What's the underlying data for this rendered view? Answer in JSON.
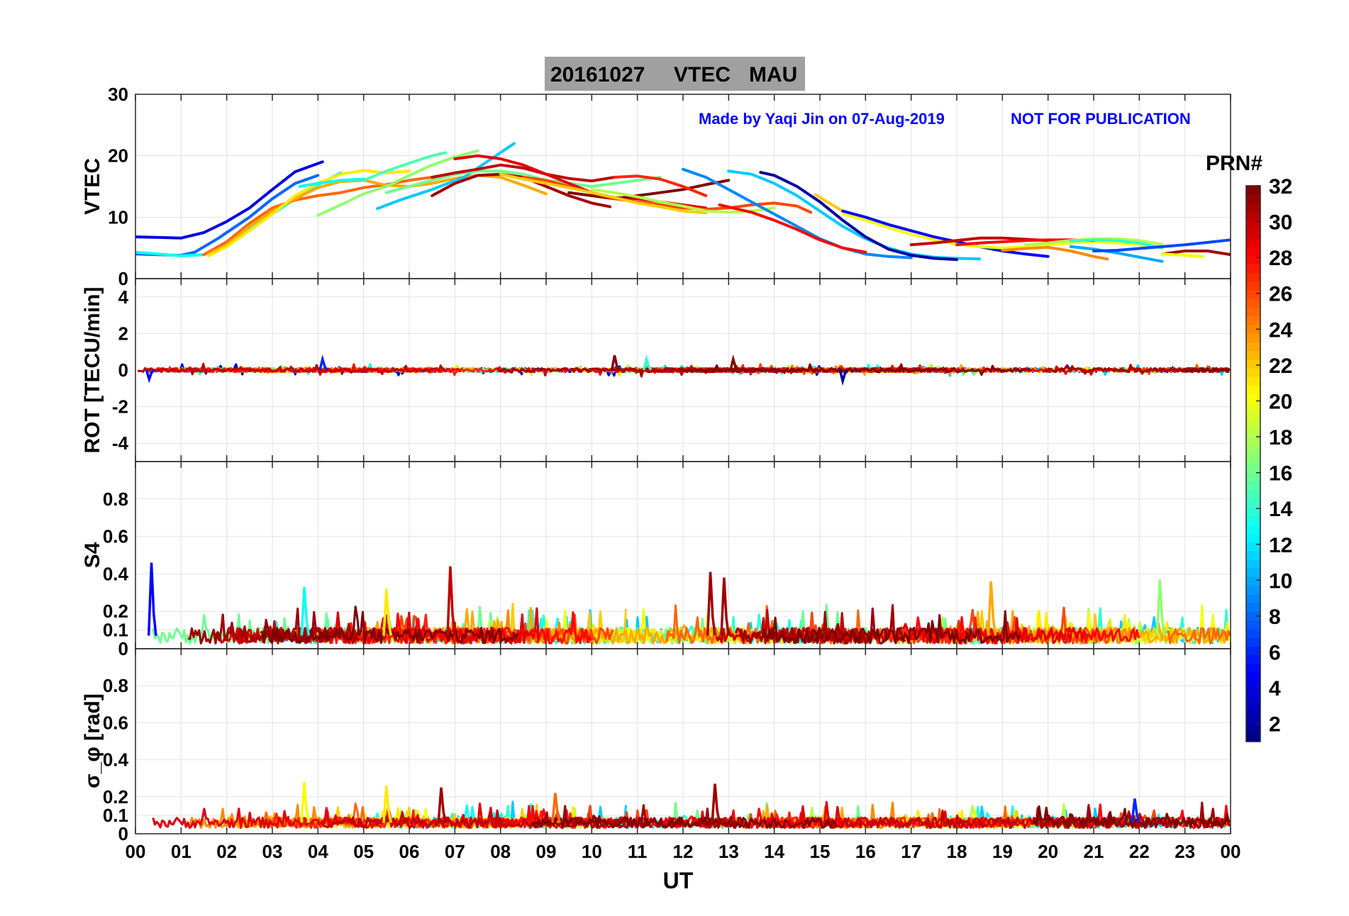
{
  "title": {
    "date": "20161027",
    "quantity": "VTEC",
    "station": "MAU",
    "background_color": "#a0a0a0"
  },
  "credits": {
    "made_by": "Made by Yaqi Jin on 07-Aug-2019",
    "notice": "NOT FOR PUBLICATION",
    "color": "#0000ff"
  },
  "colorbar": {
    "label": "PRN#",
    "range": [
      1,
      32
    ],
    "ticks": [
      "2",
      "4",
      "6",
      "8",
      "10",
      "12",
      "14",
      "16",
      "18",
      "20",
      "22",
      "24",
      "26",
      "28",
      "30",
      "32"
    ],
    "colormap": "jet"
  },
  "x_axis": {
    "label": "UT",
    "ticks": [
      "00",
      "01",
      "02",
      "03",
      "04",
      "05",
      "06",
      "07",
      "08",
      "09",
      "10",
      "11",
      "12",
      "13",
      "14",
      "15",
      "16",
      "17",
      "18",
      "19",
      "20",
      "21",
      "22",
      "23",
      "00"
    ],
    "range_hours": [
      0,
      24
    ]
  },
  "chart_data": [
    {
      "type": "line",
      "panel": "vtec",
      "ylabel": "VTEC",
      "ylim": [
        0,
        30
      ],
      "yticks": [
        "0",
        "10",
        "20",
        "30"
      ],
      "grid": true,
      "series": [
        {
          "prn": 4,
          "x": [
            0.0,
            0.5,
            1.0,
            1.5,
            2.0,
            2.5,
            3.0,
            3.5,
            4.1
          ],
          "y": [
            6.8,
            6.7,
            6.6,
            7.5,
            9.3,
            11.5,
            14.5,
            17.4,
            19.0
          ]
        },
        {
          "prn": 8,
          "x": [
            0.0,
            0.5,
            1.0,
            1.3,
            1.8,
            2.5,
            3.0,
            3.5,
            4.0
          ],
          "y": [
            4.0,
            3.9,
            3.8,
            4.3,
            6.5,
            10.0,
            13.0,
            15.5,
            16.8
          ]
        },
        {
          "prn": 13,
          "x": [
            0.0,
            0.5,
            1.0,
            1.5,
            2.0,
            2.6,
            3.2,
            3.8,
            4.5
          ],
          "y": [
            4.3,
            4.0,
            3.7,
            3.9,
            5.8,
            8.5,
            11.5,
            14.5,
            17.2
          ]
        },
        {
          "prn": 25,
          "x": [
            1.5,
            2.0,
            2.5,
            3.0,
            3.5,
            4.0,
            4.5,
            5.0,
            5.5,
            6.0,
            6.5
          ],
          "y": [
            3.9,
            6.0,
            9.0,
            11.5,
            12.8,
            13.5,
            14.0,
            14.8,
            15.3,
            16.0,
            16.5
          ]
        },
        {
          "prn": 23,
          "x": [
            1.6,
            2.0,
            2.5,
            3.0,
            3.5,
            4.0,
            4.5,
            5.0,
            5.5,
            6.0,
            6.5,
            7.0,
            7.5,
            8.0,
            8.5,
            9.0
          ],
          "y": [
            4.0,
            5.5,
            8.5,
            11.0,
            13.0,
            14.8,
            15.8,
            16.0,
            15.2,
            15.0,
            15.5,
            16.3,
            16.8,
            16.5,
            15.2,
            13.8
          ]
        },
        {
          "prn": 21,
          "x": [
            1.6,
            2.0,
            2.5,
            3.0,
            3.5,
            4.0,
            4.5,
            5.0,
            5.5,
            6.0
          ],
          "y": [
            3.7,
            5.2,
            7.8,
            10.5,
            13.5,
            15.5,
            17.0,
            17.6,
            17.2,
            17.5
          ]
        },
        {
          "prn": 17,
          "x": [
            4.0,
            4.5,
            5.0,
            5.5,
            6.0,
            6.5,
            7.0,
            7.5
          ],
          "y": [
            10.3,
            12.0,
            13.8,
            15.0,
            16.8,
            18.5,
            19.8,
            20.8
          ]
        },
        {
          "prn": 15,
          "x": [
            5.0,
            5.5,
            6.0,
            6.5,
            6.8
          ],
          "y": [
            16.0,
            17.5,
            18.8,
            20.0,
            20.5
          ]
        },
        {
          "prn": 13,
          "x": [
            3.6,
            4.0,
            4.5,
            5.0
          ],
          "y": [
            15.0,
            15.5,
            16.0,
            16.2
          ]
        },
        {
          "prn": 11,
          "x": [
            5.3,
            5.8,
            6.5,
            7.2,
            7.8,
            8.3
          ],
          "y": [
            11.4,
            12.8,
            14.5,
            16.5,
            19.5,
            22.0
          ]
        },
        {
          "prn": 16,
          "x": [
            5.5,
            6.0,
            6.5,
            7.0,
            7.5,
            8.0,
            8.5,
            9.0,
            9.5,
            10.0,
            10.5,
            11.0,
            11.5
          ],
          "y": [
            14.0,
            15.0,
            16.0,
            17.0,
            17.5,
            17.5,
            17.0,
            16.0,
            15.5,
            15.0,
            15.5,
            16.0,
            16.5
          ]
        },
        {
          "prn": 31,
          "x": [
            6.5,
            7.0,
            7.5,
            8.0,
            8.5,
            9.0,
            9.5,
            10.0,
            10.4
          ],
          "y": [
            13.5,
            15.5,
            16.8,
            17.0,
            16.5,
            15.0,
            13.5,
            12.3,
            11.7
          ]
        },
        {
          "prn": 30,
          "x": [
            6.5,
            7.0,
            7.5,
            8.0,
            8.5,
            9.0,
            9.5,
            10.0,
            10.5
          ],
          "y": [
            16.5,
            17.2,
            17.8,
            18.5,
            18.0,
            17.0,
            16.3,
            15.9,
            16.5
          ]
        },
        {
          "prn": 29,
          "x": [
            7.0,
            7.5,
            8.0,
            8.5,
            9.0,
            9.5,
            10.0,
            10.5,
            11.0,
            11.5,
            12.0,
            12.5
          ],
          "y": [
            19.5,
            20.0,
            19.5,
            18.5,
            17.0,
            15.5,
            14.0,
            13.2,
            13.0,
            12.5,
            12.0,
            11.5
          ]
        },
        {
          "prn": 32,
          "x": [
            9.5,
            10.0,
            10.5,
            11.0,
            11.5,
            12.0,
            12.5,
            13.0
          ],
          "y": [
            14.0,
            13.5,
            13.0,
            13.5,
            14.0,
            14.5,
            15.3,
            16.0
          ]
        },
        {
          "prn": 27,
          "x": [
            10.5,
            11.0,
            11.5,
            12.0,
            12.5
          ],
          "y": [
            16.5,
            16.7,
            16.2,
            15.0,
            13.5
          ]
        },
        {
          "prn": 26,
          "x": [
            8.5,
            9.0,
            9.5,
            10.0,
            10.5,
            11.0,
            11.5,
            12.0,
            12.5,
            13.0,
            13.5,
            14.0,
            14.5,
            14.8
          ],
          "y": [
            16.5,
            16.0,
            15.0,
            14.0,
            13.0,
            12.5,
            12.0,
            11.5,
            11.3,
            11.5,
            12.0,
            12.3,
            11.8,
            10.8
          ]
        },
        {
          "prn": 22,
          "x": [
            8.0,
            8.5,
            9.0,
            9.5,
            10.0,
            10.5,
            11.0,
            11.5,
            12.0,
            12.5
          ],
          "y": [
            17.0,
            16.2,
            15.5,
            14.8,
            14.0,
            13.2,
            12.3,
            11.7,
            11.0,
            10.7
          ]
        },
        {
          "prn": 18,
          "x": [
            10.0,
            10.5,
            11.0,
            11.5,
            12.0,
            12.5,
            13.0,
            13.5,
            14.0
          ],
          "y": [
            14.5,
            14.0,
            13.3,
            12.5,
            11.8,
            11.0,
            10.8,
            11.0,
            11.5
          ]
        },
        {
          "prn": 9,
          "x": [
            12.0,
            12.5,
            13.0,
            13.5,
            14.0,
            14.5,
            15.0,
            15.5,
            16.0,
            16.5,
            17.0
          ],
          "y": [
            17.8,
            16.5,
            14.5,
            12.5,
            10.5,
            8.5,
            6.5,
            5.0,
            4.0,
            3.6,
            3.4
          ]
        },
        {
          "prn": 11,
          "x": [
            13.0,
            13.5,
            14.0,
            14.5,
            15.0,
            15.5,
            16.0,
            16.5,
            17.0,
            17.5,
            18.0,
            18.5
          ],
          "y": [
            17.5,
            17.0,
            15.5,
            13.5,
            11.0,
            8.5,
            6.5,
            5.0,
            4.0,
            3.5,
            3.3,
            3.2
          ]
        },
        {
          "prn": 2,
          "x": [
            13.7,
            14.0,
            14.5,
            15.0,
            15.5,
            16.0,
            16.5,
            17.0,
            17.5,
            18.0
          ],
          "y": [
            17.3,
            16.8,
            15.0,
            12.5,
            9.5,
            6.8,
            4.8,
            3.8,
            3.3,
            3.1
          ]
        },
        {
          "prn": 28,
          "x": [
            12.8,
            13.5,
            14.0,
            14.5,
            15.0,
            15.5,
            16.0
          ],
          "y": [
            12.0,
            10.8,
            9.5,
            8.0,
            6.3,
            5.0,
            4.3
          ]
        },
        {
          "prn": 22,
          "x": [
            14.9,
            15.2,
            15.5
          ],
          "y": [
            13.7,
            12.3,
            11.0
          ]
        },
        {
          "prn": 5,
          "x": [
            15.5,
            16.0,
            16.5,
            17.0,
            17.5,
            18.0,
            18.5,
            19.0,
            19.5,
            20.0
          ],
          "y": [
            11.0,
            10.0,
            8.8,
            7.8,
            6.8,
            6.0,
            5.2,
            4.5,
            4.0,
            3.6
          ]
        },
        {
          "prn": 20,
          "x": [
            15.5,
            16.0,
            16.5,
            17.0,
            17.5,
            18.0,
            18.5,
            19.0,
            19.5,
            20.0,
            20.5,
            21.0,
            21.5,
            22.0,
            22.5
          ],
          "y": [
            10.5,
            9.5,
            8.3,
            7.2,
            6.3,
            5.6,
            5.2,
            5.0,
            5.2,
            5.5,
            5.8,
            6.0,
            5.8,
            5.5,
            5.0
          ]
        },
        {
          "prn": 30,
          "x": [
            17.0,
            17.5,
            18.0,
            18.5,
            19.0,
            19.5,
            20.0
          ],
          "y": [
            5.5,
            5.8,
            6.2,
            6.6,
            6.6,
            6.4,
            6.2
          ]
        },
        {
          "prn": 28,
          "x": [
            18.0,
            18.5,
            19.0,
            19.5,
            20.0,
            20.5,
            21.0
          ],
          "y": [
            5.5,
            5.8,
            6.0,
            6.2,
            6.3,
            6.3,
            6.2
          ]
        },
        {
          "prn": 24,
          "x": [
            19.0,
            19.5,
            20.0,
            20.5,
            21.0,
            21.3
          ],
          "y": [
            4.6,
            4.9,
            5.1,
            4.5,
            3.6,
            3.2
          ]
        },
        {
          "prn": 18,
          "x": [
            19.5,
            20.0,
            20.5,
            21.0,
            21.5,
            22.0,
            22.5
          ],
          "y": [
            5.5,
            5.8,
            6.2,
            6.5,
            6.5,
            6.2,
            5.6
          ]
        },
        {
          "prn": 14,
          "x": [
            20.5,
            21.0,
            21.5,
            22.0,
            22.5
          ],
          "y": [
            6.1,
            6.3,
            6.2,
            5.8,
            5.0
          ]
        },
        {
          "prn": 10,
          "x": [
            20.5,
            21.0,
            21.5,
            22.0,
            22.5
          ],
          "y": [
            5.2,
            4.8,
            4.2,
            3.5,
            2.8
          ]
        },
        {
          "prn": 7,
          "x": [
            21.0,
            21.5,
            22.0,
            22.5,
            23.0,
            23.5,
            24.0
          ],
          "y": [
            4.5,
            4.6,
            4.9,
            5.2,
            5.5,
            5.9,
            6.3
          ]
        },
        {
          "prn": 31,
          "x": [
            22.5,
            23.0,
            23.5,
            24.0
          ],
          "y": [
            4.0,
            4.5,
            4.5,
            3.9
          ]
        },
        {
          "prn": 20,
          "x": [
            22.5,
            23.0,
            23.4
          ],
          "y": [
            4.0,
            3.8,
            3.6
          ]
        }
      ]
    },
    {
      "type": "line",
      "panel": "rot",
      "ylabel": "ROT [TECU/min]",
      "ylim": [
        -5,
        5
      ],
      "yticks": [
        "-4",
        "-2",
        "0",
        "2",
        "4"
      ],
      "grid": true,
      "trace_summary": "dense per-PRN rate of TEC traces fluctuating near 0 TECU/min across 00-24 UT",
      "baseline": 0,
      "typical_amplitude": 0.15,
      "notable_peaks": [
        {
          "prn": 6,
          "x": 4.1,
          "y": 0.6
        },
        {
          "prn": 32,
          "x": 10.5,
          "y": 0.8
        },
        {
          "prn": 32,
          "x": 13.1,
          "y": 0.6
        },
        {
          "prn": 14,
          "x": 11.2,
          "y": 0.6
        },
        {
          "prn": 2,
          "x": 15.5,
          "y": -0.6
        },
        {
          "prn": 5,
          "x": 0.3,
          "y": -0.5
        }
      ]
    },
    {
      "type": "line",
      "panel": "s4",
      "ylabel": "S4",
      "ylim": [
        0,
        1
      ],
      "yticks": [
        "0",
        "0.1",
        "0.2",
        "0.4",
        "0.6",
        "0.8"
      ],
      "grid": true,
      "trace_summary": "amplitude scintillation index per PRN, baseline about 0.05-0.1",
      "baseline": 0.07,
      "typical_amplitude": 0.06,
      "notable_peaks": [
        {
          "prn": 5,
          "x": 0.35,
          "y": 0.46
        },
        {
          "prn": 30,
          "x": 6.9,
          "y": 0.44
        },
        {
          "prn": 31,
          "x": 12.6,
          "y": 0.41
        },
        {
          "prn": 31,
          "x": 12.9,
          "y": 0.38
        },
        {
          "prn": 21,
          "x": 5.5,
          "y": 0.32
        },
        {
          "prn": 23,
          "x": 18.75,
          "y": 0.36
        },
        {
          "prn": 17,
          "x": 22.45,
          "y": 0.37
        },
        {
          "prn": 13,
          "x": 3.7,
          "y": 0.33
        }
      ]
    },
    {
      "type": "line",
      "panel": "sigma_phi",
      "ylabel": "σ_φ [rad]",
      "ylim": [
        0,
        1
      ],
      "yticks": [
        "0",
        "0.1",
        "0.2",
        "0.4",
        "0.6",
        "0.8"
      ],
      "grid": true,
      "trace_summary": "phase scintillation index per PRN, baseline about 0.05-0.08",
      "baseline": 0.06,
      "typical_amplitude": 0.04,
      "notable_peaks": [
        {
          "prn": 20,
          "x": 3.7,
          "y": 0.28
        },
        {
          "prn": 31,
          "x": 12.7,
          "y": 0.27
        },
        {
          "prn": 21,
          "x": 5.5,
          "y": 0.26
        },
        {
          "prn": 31,
          "x": 6.7,
          "y": 0.25
        },
        {
          "prn": 25,
          "x": 9.2,
          "y": 0.22
        },
        {
          "prn": 6,
          "x": 21.9,
          "y": 0.19
        }
      ]
    }
  ]
}
